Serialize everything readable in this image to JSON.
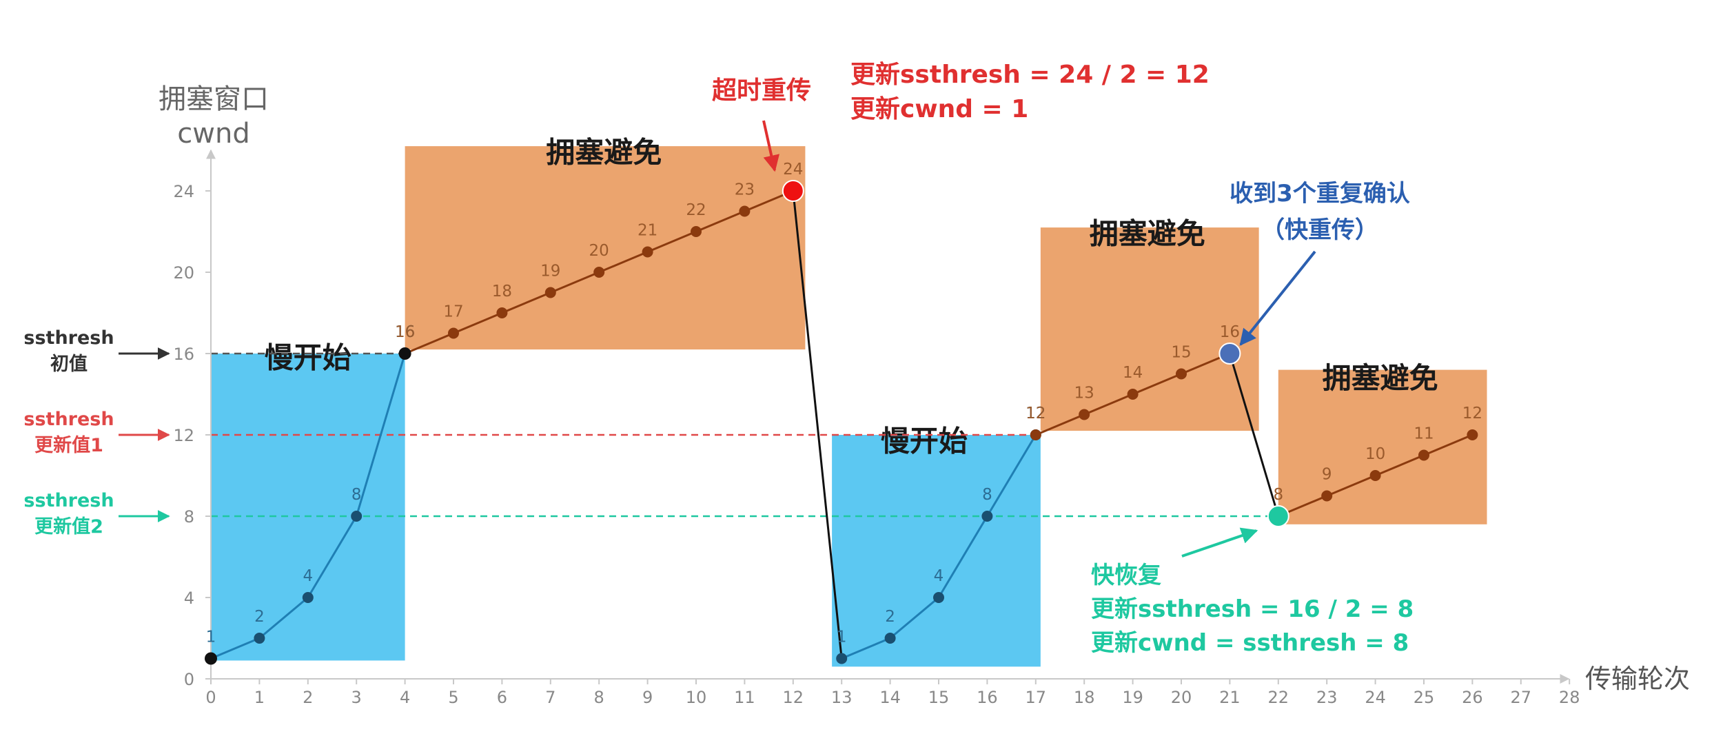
{
  "chart_data": {
    "type": "line",
    "ylabel_lines": [
      "拥塞窗口",
      "cwnd"
    ],
    "xlabel": "传输轮次",
    "xlim": [
      0,
      28
    ],
    "ylim": [
      0,
      26
    ],
    "x_ticks": [
      0,
      1,
      2,
      3,
      4,
      5,
      6,
      7,
      8,
      9,
      10,
      11,
      12,
      13,
      14,
      15,
      16,
      17,
      18,
      19,
      20,
      21,
      22,
      23,
      24,
      25,
      26,
      27,
      28
    ],
    "y_ticks": [
      0,
      4,
      8,
      12,
      16,
      20,
      24
    ],
    "series": [
      {
        "phase": "slow-start",
        "color": "#1f7fb4",
        "x": [
          0,
          1,
          2,
          3,
          4
        ],
        "y": [
          1,
          2,
          4,
          8,
          16
        ],
        "labels": [
          "1",
          "2",
          "4",
          "8",
          "16"
        ]
      },
      {
        "phase": "congestion-avoidance",
        "color": "#8b3a0e",
        "x": [
          4,
          5,
          6,
          7,
          8,
          9,
          10,
          11,
          12
        ],
        "y": [
          16,
          17,
          18,
          19,
          20,
          21,
          22,
          23,
          24
        ],
        "labels": [
          "16",
          "17",
          "18",
          "19",
          "20",
          "21",
          "22",
          "23",
          "24"
        ]
      },
      {
        "phase": "timeout-drop",
        "color": "#111111",
        "x": [
          12,
          13
        ],
        "y": [
          24,
          1
        ],
        "labels": []
      },
      {
        "phase": "slow-start",
        "color": "#1f7fb4",
        "x": [
          13,
          14,
          15,
          16,
          17
        ],
        "y": [
          1,
          2,
          4,
          8,
          12
        ],
        "labels": [
          "1",
          "2",
          "4",
          "8",
          "12"
        ]
      },
      {
        "phase": "congestion-avoidance",
        "color": "#8b3a0e",
        "x": [
          17,
          18,
          19,
          20,
          21
        ],
        "y": [
          12,
          13,
          14,
          15,
          16
        ],
        "labels": [
          "12",
          "13",
          "14",
          "15",
          "16"
        ]
      },
      {
        "phase": "fast-recovery-drop",
        "color": "#111111",
        "x": [
          21,
          22
        ],
        "y": [
          16,
          8
        ],
        "labels": []
      },
      {
        "phase": "congestion-avoidance",
        "color": "#8b3a0e",
        "x": [
          22,
          23,
          24,
          25,
          26
        ],
        "y": [
          8,
          9,
          10,
          11,
          12
        ],
        "labels": [
          "8",
          "9",
          "10",
          "11",
          "12"
        ]
      }
    ],
    "regions": [
      {
        "label": "慢开始",
        "color": "#5cc8f2",
        "x": [
          0,
          4
        ],
        "y": [
          0.9,
          16
        ],
        "label_at": [
          2,
          15.3
        ]
      },
      {
        "label": "拥塞避免",
        "color": "#eba46e",
        "x": [
          4,
          12.25
        ],
        "y": [
          16.2,
          26.2
        ],
        "label_at": [
          8.1,
          25.4
        ]
      },
      {
        "label": "慢开始",
        "color": "#5cc8f2",
        "x": [
          12.8,
          17.1
        ],
        "y": [
          0.6,
          12
        ],
        "label_at": [
          14.7,
          11.2
        ]
      },
      {
        "label": "拥塞避免",
        "color": "#eba46e",
        "x": [
          17.1,
          21.6
        ],
        "y": [
          12.2,
          22.2
        ],
        "label_at": [
          19.3,
          21.4
        ]
      },
      {
        "label": "拥塞避免",
        "color": "#eba46e",
        "x": [
          22,
          26.3
        ],
        "y": [
          7.6,
          15.2
        ],
        "label_at": [
          24.1,
          14.3
        ]
      }
    ],
    "threshold_lines": [
      {
        "y": 16,
        "color": "#555555",
        "to_x": 4,
        "label_lines": [
          "ssthresh",
          "初值"
        ]
      },
      {
        "y": 12,
        "color": "#e04848",
        "to_x": 17,
        "label_lines": [
          "ssthresh",
          "更新值1"
        ]
      },
      {
        "y": 8,
        "color": "#1ec8a0",
        "to_x": 22,
        "label_lines": [
          "ssthresh",
          "更新值2"
        ]
      }
    ],
    "highlight_points": [
      {
        "x": 12,
        "y": 24,
        "color": "#ee1111"
      },
      {
        "x": 21,
        "y": 16,
        "color": "#4a6fb8"
      },
      {
        "x": 22,
        "y": 8,
        "color": "#1ec8a0"
      }
    ],
    "annotations": [
      {
        "name": "timeout",
        "color": "#e03030",
        "lines": [
          "超时重传"
        ]
      },
      {
        "name": "timeout-update",
        "color": "#e03030",
        "lines": [
          "更新ssthresh = 24 / 2 = 12",
          "更新cwnd = 1"
        ]
      },
      {
        "name": "triple-dup-ack",
        "color": "#2b5fb0",
        "lines": [
          "收到3个重复确认",
          "（快重传）"
        ]
      },
      {
        "name": "fast-recovery",
        "color": "#1ec8a0",
        "lines": [
          "快恢复",
          "更新ssthresh = 16 / 2 = 8",
          "更新cwnd = ssthresh = 8"
        ]
      }
    ]
  }
}
